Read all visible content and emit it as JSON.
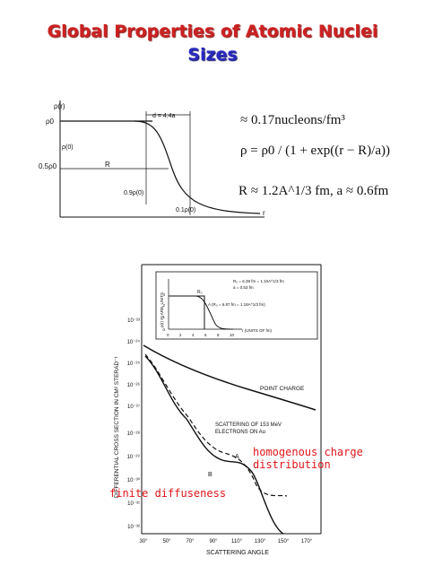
{
  "title": "Global Properties of Atomic Nuclei",
  "subtitle": "Sizes",
  "density_plot": {
    "y_axis_label": "ρ(r)",
    "x_axis_label": "r",
    "rho0_label": "ρ0",
    "half_label": "0.5ρ0",
    "rho_zero_label": "ρ(0)",
    "d_label": "d = 4.4a",
    "R_label": "R",
    "p09_label": "0.9ρ(0)",
    "p01_label": "0.1ρ(0)"
  },
  "equations": {
    "eq1": "≈ 0.17nucleons/fm³",
    "eq2": "ρ = ρ0 / (1 + exp((r − R)/a))",
    "eq3": "R ≈ 1.2A^1/3 fm,   a ≈ 0.6fm"
  },
  "cross_section_plot": {
    "y_axis_label": "DIFFERENTIAL CROSS SECTION IN CM² STERAD⁻¹",
    "x_axis_label": "SCATTERING ANGLE",
    "y_ticks": [
      "10⁻²³",
      "10⁻²⁴",
      "10⁻²⁵",
      "10⁻²⁶",
      "10⁻²⁷",
      "10⁻²⁸",
      "10⁻²⁹",
      "10⁻³⁰",
      "10⁻³¹",
      "10⁻³²"
    ],
    "x_ticks": [
      "30°",
      "50°",
      "70°",
      "90°",
      "110°",
      "130°",
      "150°",
      "170°"
    ],
    "point_charge_label": "POINT CHARGE",
    "scattering_label_1": "SCATTERING OF 153 MeV",
    "scattering_label_2": "ELECTRONS ON Au",
    "curve_a_label": "A",
    "curve_b_label": "B",
    "inset": {
      "y_label": "ρ(r) IN ARB. UNITS",
      "x_label": "r (UNITS OF fm)",
      "legend_b1": "R₀ = 6.38 fm = 1.10A^1/3 fm",
      "legend_b2": "a = 0.53 fm",
      "legend_a": "A (R₀ = 6.87 fm = 1.18A^1/3 fm)",
      "x_ticks": [
        "0",
        "2",
        "4",
        "6",
        "8",
        "10"
      ],
      "y_ticks": [
        "0",
        "1",
        "2",
        "3"
      ],
      "r0_label": "R₀"
    }
  },
  "annotations": {
    "homogenous": "homogenous charge distribution",
    "finite": "finite diffuseness"
  }
}
